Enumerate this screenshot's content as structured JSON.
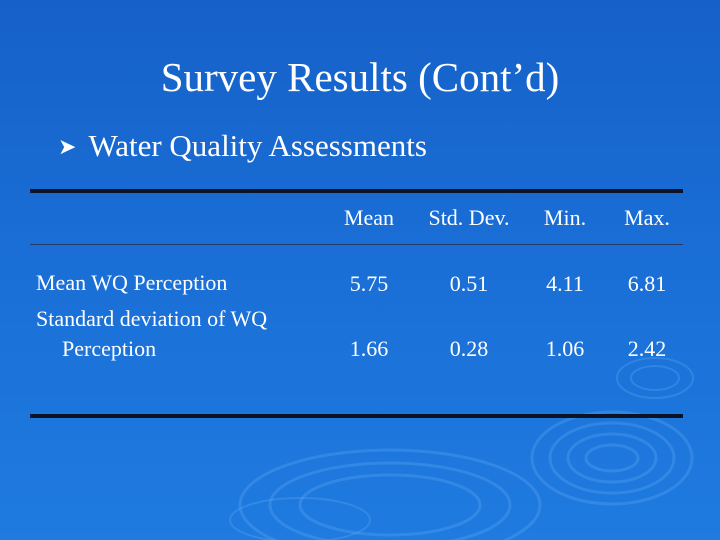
{
  "slide": {
    "title": "Survey Results (Cont’d)",
    "bullet": "Water Quality Assessments",
    "bullet_icon": "arrow-bullet-icon"
  },
  "table": {
    "headers": [
      "Mean",
      "Std. Dev.",
      "Min.",
      "Max."
    ],
    "rows": [
      {
        "label_line1": "Mean WQ Perception",
        "label_line2": "",
        "values": [
          "5.75",
          "0.51",
          "4.11",
          "6.81"
        ]
      },
      {
        "label_line1": "Standard deviation of WQ",
        "label_line2": "Perception",
        "values": [
          "1.66",
          "0.28",
          "1.06",
          "2.42"
        ]
      }
    ]
  },
  "colors": {
    "background": "#1a6fd6",
    "text": "#ffffff",
    "rule": "#0b1426"
  }
}
